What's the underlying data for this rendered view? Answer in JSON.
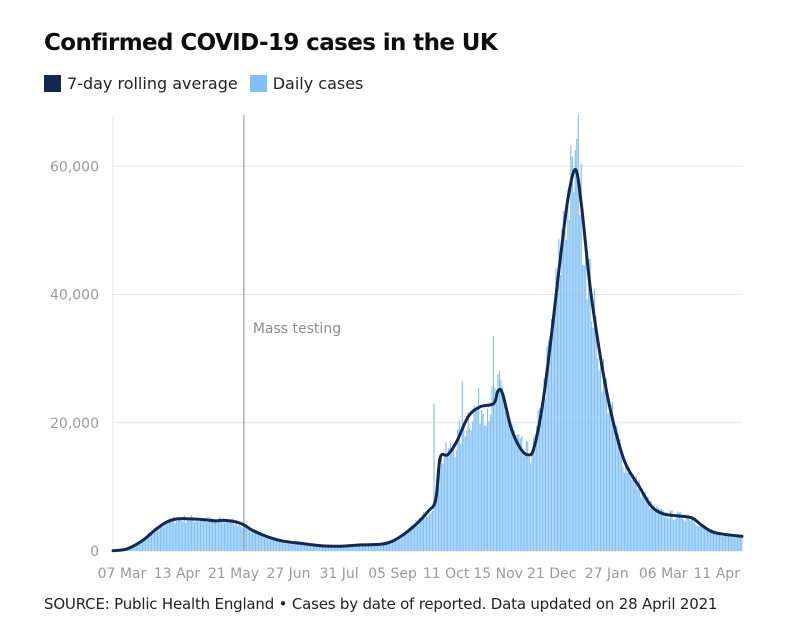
{
  "header": {
    "title": "Confirmed COVID-19 cases in the UK"
  },
  "source": {
    "text": "SOURCE: Public Health England • Cases by date of reported. Data updated on 28 April 2021"
  },
  "colors": {
    "average_line": "#142850",
    "daily_bars": "#7fbff5",
    "gridline": "#e6e6e6",
    "axis_text": "#9a9a9a",
    "annotation_line": "#9e9e9e"
  },
  "chart_data": {
    "type": "bar",
    "title": "Confirmed COVID-19 cases in the UK",
    "xlabel": "",
    "ylabel": "",
    "ylim": [
      0,
      68000
    ],
    "y_ticks": [
      "0",
      "20,000",
      "40,000",
      "60,000"
    ],
    "y_tick_values": [
      0,
      20000,
      40000,
      60000
    ],
    "x_tick_labels": [
      "07 Mar",
      "13 Apr",
      "21 May",
      "27 Jun",
      "31 Jul",
      "05 Sep",
      "11 Oct",
      "15 Nov",
      "21 Dec",
      "27 Jan",
      "06 Mar",
      "11 Apr"
    ],
    "x_tick_dates": [
      "2020-03-07",
      "2020-04-13",
      "2020-05-21",
      "2020-06-27",
      "2020-07-31",
      "2020-09-05",
      "2020-10-11",
      "2020-11-15",
      "2020-12-21",
      "2021-01-27",
      "2021-03-06",
      "2021-04-11"
    ],
    "x_range": [
      "2020-03-01",
      "2021-04-28"
    ],
    "grid": true,
    "legend_position": "top-left",
    "legend": [
      "7-day rolling average",
      "Daily cases"
    ],
    "annotation": {
      "label": "Mass testing",
      "date": "2020-05-28"
    },
    "series": [
      {
        "name": "7-day rolling average",
        "kind": "line",
        "points": [
          [
            "2020-03-01",
            50
          ],
          [
            "2020-03-10",
            300
          ],
          [
            "2020-03-20",
            1500
          ],
          [
            "2020-03-30",
            3400
          ],
          [
            "2020-04-06",
            4500
          ],
          [
            "2020-04-13",
            5000
          ],
          [
            "2020-04-22",
            5000
          ],
          [
            "2020-05-01",
            4900
          ],
          [
            "2020-05-09",
            4700
          ],
          [
            "2020-05-14",
            4800
          ],
          [
            "2020-05-20",
            4650
          ],
          [
            "2020-05-27",
            4200
          ],
          [
            "2020-06-03",
            3200
          ],
          [
            "2020-06-12",
            2300
          ],
          [
            "2020-06-22",
            1600
          ],
          [
            "2020-07-05",
            1200
          ],
          [
            "2020-07-20",
            800
          ],
          [
            "2020-08-01",
            750
          ],
          [
            "2020-08-15",
            950
          ],
          [
            "2020-08-31",
            1150
          ],
          [
            "2020-09-10",
            2200
          ],
          [
            "2020-09-20",
            4000
          ],
          [
            "2020-09-29",
            6200
          ],
          [
            "2020-10-04",
            8000
          ],
          [
            "2020-10-07",
            14500
          ],
          [
            "2020-10-12",
            15000
          ],
          [
            "2020-10-18",
            17000
          ],
          [
            "2020-10-26",
            21000
          ],
          [
            "2020-11-03",
            22500
          ],
          [
            "2020-11-12",
            23000
          ],
          [
            "2020-11-15",
            25000
          ],
          [
            "2020-11-18",
            24500
          ],
          [
            "2020-11-24",
            19000
          ],
          [
            "2020-11-30",
            16000
          ],
          [
            "2020-12-05",
            15000
          ],
          [
            "2020-12-09",
            16000
          ],
          [
            "2020-12-15",
            23000
          ],
          [
            "2020-12-22",
            36000
          ],
          [
            "2020-12-27",
            46000
          ],
          [
            "2021-01-01",
            55000
          ],
          [
            "2021-01-06",
            59500
          ],
          [
            "2021-01-10",
            54000
          ],
          [
            "2021-01-16",
            41000
          ],
          [
            "2021-01-23",
            30000
          ],
          [
            "2021-01-30",
            21500
          ],
          [
            "2021-02-08",
            14000
          ],
          [
            "2021-02-18",
            10000
          ],
          [
            "2021-02-26",
            7000
          ],
          [
            "2021-03-06",
            5800
          ],
          [
            "2021-03-15",
            5500
          ],
          [
            "2021-03-25",
            5200
          ],
          [
            "2021-04-01",
            4000
          ],
          [
            "2021-04-08",
            3000
          ],
          [
            "2021-04-16",
            2600
          ],
          [
            "2021-04-28",
            2300
          ]
        ]
      },
      {
        "name": "Daily cases",
        "kind": "bar",
        "noise": 0.14,
        "peaks": [
          [
            "2020-10-03",
            23000
          ],
          [
            "2020-10-22",
            26500
          ],
          [
            "2020-11-12",
            33500
          ],
          [
            "2020-12-29",
            53000
          ],
          [
            "2021-01-04",
            61500
          ],
          [
            "2021-01-08",
            68000
          ]
        ]
      }
    ]
  }
}
